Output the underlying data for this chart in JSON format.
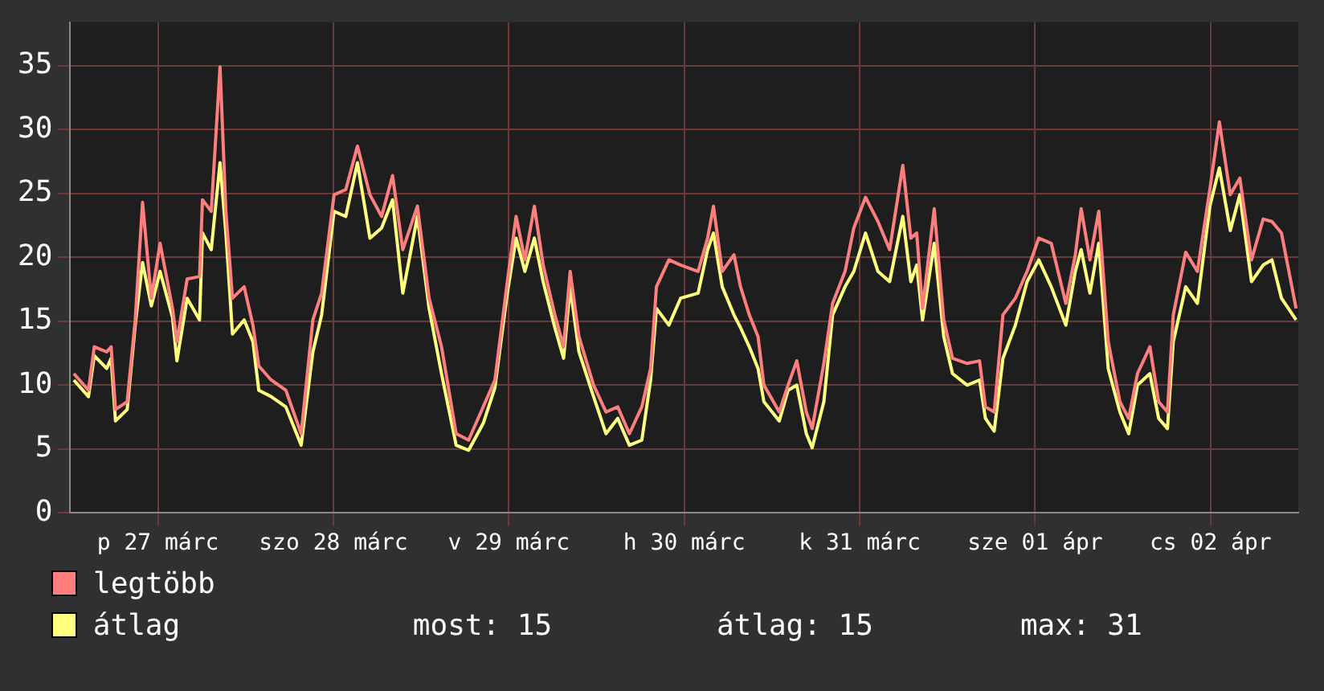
{
  "chart_data": {
    "type": "line",
    "xlim": [
      "--03-27T00:00",
      "--04-03T00:00"
    ],
    "ylim": [
      0,
      38.4
    ],
    "yticks": [
      0,
      5,
      10,
      15,
      20,
      25,
      30,
      35
    ],
    "xticks": [
      {
        "value": "--03-27T12:00",
        "label": "p 27 márc"
      },
      {
        "value": "--03-28T12:00",
        "label": "szo 28 márc"
      },
      {
        "value": "--03-29T12:00",
        "label": "v 29 márc"
      },
      {
        "value": "--03-30T12:00",
        "label": "h 30 márc"
      },
      {
        "value": "--03-31T12:00",
        "label": "k 31 márc"
      },
      {
        "value": "--04-01T12:00",
        "label": "sze 01 ápr"
      },
      {
        "value": "--04-02T12:00",
        "label": "cs 02 ápr"
      }
    ],
    "grid": true,
    "legend": "bottom",
    "marker": "none",
    "line_style": "solid",
    "annotations": [
      "most: 15",
      "átlag: 15",
      "max: 31"
    ],
    "x": [
      "--03-27T00:30",
      "--03-27T02:30",
      "--03-27T03:18",
      "--03-27T05:00",
      "--03-27T05:36",
      "--03-27T06:12",
      "--03-27T07:48",
      "--03-27T08:54",
      "--03-27T09:54",
      "--03-27T11:06",
      "--03-27T12:18",
      "--03-27T14:00",
      "--03-27T14:36",
      "--03-27T16:00",
      "--03-27T17:42",
      "--03-27T18:06",
      "--03-27T19:18",
      "--03-27T20:30",
      "--03-27T21:18",
      "--03-27T22:12",
      "--03-27T23:48",
      "--03-28T01:00",
      "--03-28T01:48",
      "--03-28T03:30",
      "--03-28T05:30",
      "--03-28T07:36",
      "--03-28T09:12",
      "--03-28T10:24",
      "--03-28T12:06",
      "--03-28T13:42",
      "--03-28T15:18",
      "--03-28T17:00",
      "--03-28T18:36",
      "--03-28T20:06",
      "--03-28T21:30",
      "--03-28T23:30",
      "--03-29T01:06",
      "--03-29T02:48",
      "--03-29T04:48",
      "--03-29T06:30",
      "--03-29T08:30",
      "--03-29T10:06",
      "--03-29T11:48",
      "--03-29T13:00",
      "--03-29T14:12",
      "--03-29T15:30",
      "--03-29T16:42",
      "--03-29T18:18",
      "--03-29T19:30",
      "--03-29T20:24",
      "--03-29T21:36",
      "--03-29T23:36",
      "--03-30T01:18",
      "--03-30T02:54",
      "--03-30T04:30",
      "--03-30T06:12",
      "--03-30T07:24",
      "--03-30T08:12",
      "--03-30T09:54",
      "--03-30T11:30",
      "--03-30T13:54",
      "--03-30T15:12",
      "--03-30T16:00",
      "--03-30T17:12",
      "--03-30T18:48",
      "--03-30T19:42",
      "--03-30T20:54",
      "--03-30T22:06",
      "--03-30T22:54",
      "--03-31T01:00",
      "--03-31T02:12",
      "--03-31T03:24",
      "--03-31T04:42",
      "--03-31T05:30",
      "--03-31T07:06",
      "--03-31T08:18",
      "--03-31T10:00",
      "--03-31T11:12",
      "--03-31T12:48",
      "--03-31T14:30",
      "--03-31T16:06",
      "--03-31T17:54",
      "--03-31T19:00",
      "--03-31T19:48",
      "--03-31T20:36",
      "--03-31T22:12",
      "--03-31T23:30",
      "--04-01T00:42",
      "--04-01T02:42",
      "--04-01T04:24",
      "--04-01T05:12",
      "--04-01T06:24",
      "--04-01T07:36",
      "--04-01T09:18",
      "--04-01T10:54",
      "--04-01T12:30",
      "--04-01T14:12",
      "--04-01T16:12",
      "--04-01T17:30",
      "--04-01T18:18",
      "--04-01T19:30",
      "--04-01T20:42",
      "--04-01T22:00",
      "--04-01T23:36",
      "--04-02T00:48",
      "--04-02T02:00",
      "--04-02T03:42",
      "--04-02T04:54",
      "--04-02T06:06",
      "--04-02T06:54",
      "--04-02T08:36",
      "--04-02T10:12",
      "--04-02T11:54",
      "--04-02T13:12",
      "--04-02T14:42",
      "--04-02T16:00",
      "--04-02T17:36",
      "--04-02T19:12",
      "--04-02T20:24",
      "--04-02T21:42",
      "--04-02T23:42"
    ],
    "series": [
      {
        "name": "legtöbb",
        "color": "#ff7f7f",
        "values": [
          10.9,
          9.6,
          13,
          12.6,
          13,
          8.1,
          8.7,
          15.1,
          24.3,
          16.8,
          21.1,
          16,
          13.4,
          18.3,
          18.5,
          24.5,
          23.6,
          34.9,
          23.6,
          16.8,
          17.7,
          14.7,
          11.5,
          10.4,
          9.6,
          6.2,
          15.1,
          17.2,
          24.9,
          25.3,
          28.7,
          24.9,
          23.2,
          26.4,
          20.6,
          24,
          16.8,
          13,
          6.2,
          5.7,
          8.3,
          10.4,
          18.1,
          23.2,
          19.8,
          24,
          19.4,
          15.5,
          13,
          18.9,
          13.8,
          10,
          7.9,
          8.3,
          6.2,
          8.3,
          11.3,
          17.7,
          19.8,
          19.4,
          18.9,
          21.5,
          24,
          18.9,
          20.2,
          17.7,
          15.5,
          13.8,
          10,
          7.9,
          10,
          11.9,
          7.9,
          6.6,
          11.7,
          16.4,
          18.9,
          22.3,
          24.7,
          22.8,
          20.6,
          27.2,
          21.5,
          21.9,
          16,
          23.8,
          15.1,
          12.1,
          11.7,
          11.9,
          8.3,
          7.9,
          15.5,
          16.8,
          18.9,
          21.5,
          21.1,
          16.4,
          20.2,
          23.8,
          19.8,
          23.6,
          13.4,
          8.7,
          7.4,
          10.9,
          13,
          8.7,
          7.9,
          15.5,
          20.4,
          18.9,
          25.3,
          30.6,
          24.9,
          26.2,
          19.8,
          23,
          22.8,
          21.9,
          16
        ]
      },
      {
        "name": "átlag",
        "color": "#ffff80",
        "values": [
          10.4,
          9.1,
          12.3,
          11.3,
          12.1,
          7.2,
          8.1,
          14.7,
          19.6,
          16.2,
          18.9,
          15.3,
          11.9,
          16.8,
          15.1,
          21.9,
          20.6,
          27.4,
          21.9,
          14,
          15.1,
          13.4,
          9.6,
          9.1,
          8.3,
          5.3,
          12.6,
          15.5,
          23.6,
          23.2,
          27.4,
          21.5,
          22.3,
          24.5,
          17.2,
          23.2,
          16,
          10.9,
          5.3,
          4.9,
          7,
          9.8,
          17.2,
          21.5,
          18.9,
          21.5,
          18.1,
          14.5,
          12.1,
          17.7,
          12.6,
          9.1,
          6.2,
          7.4,
          5.3,
          5.7,
          10.4,
          16,
          14.7,
          16.8,
          17.2,
          20.6,
          21.9,
          17.7,
          15.5,
          14.5,
          13,
          11.3,
          8.7,
          7.2,
          9.6,
          10,
          6.2,
          5.1,
          8.7,
          15.5,
          17.7,
          18.9,
          21.9,
          18.9,
          18.1,
          23.2,
          18.1,
          19.4,
          15.1,
          21.1,
          13.8,
          10.9,
          10,
          10.4,
          7.4,
          6.4,
          12.1,
          14.7,
          18.1,
          19.8,
          17.7,
          14.7,
          18.9,
          20.6,
          17.2,
          21.1,
          11.3,
          7.9,
          6.2,
          10,
          10.9,
          7.4,
          6.6,
          13.4,
          17.7,
          16.4,
          24,
          27,
          22.1,
          24.9,
          18.1,
          19.4,
          19.8,
          16.8,
          15.1
        ]
      }
    ]
  }
}
